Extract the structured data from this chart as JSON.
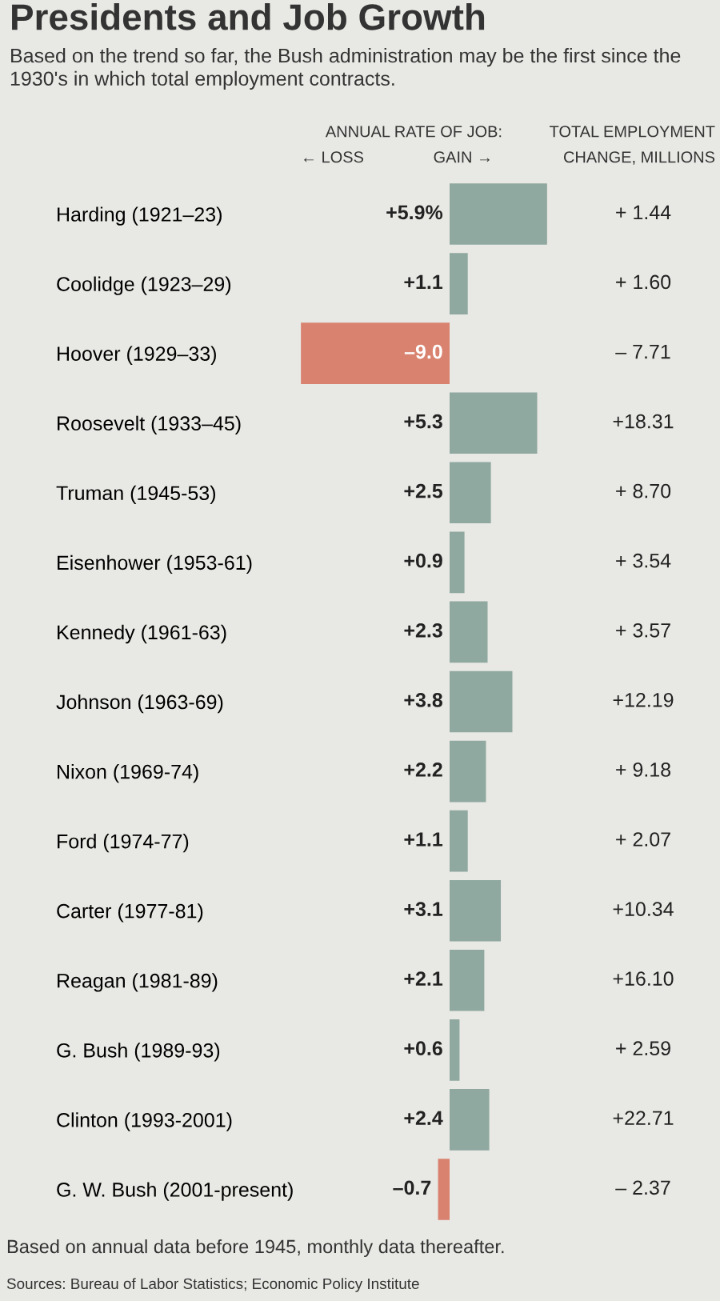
{
  "chart_data": {
    "type": "bar",
    "orientation": "horizontal",
    "title": "Presidents and Job Growth",
    "subtitle": "Based on the trend so far, the Bush administration may be the first since the 1930's in which total employment contracts.",
    "categories": [
      "Harding (1921–23)",
      "Coolidge (1923–29)",
      "Hoover (1929–33)",
      "Roosevelt (1933–45)",
      "Truman (1945-53)",
      "Eisenhower (1953-61)",
      "Kennedy (1961-63)",
      "Johnson (1963-69)",
      "Nixon (1969-74)",
      "Ford (1974-77)",
      "Carter (1977-81)",
      "Reagan (1981-89)",
      "G. Bush (1989-93)",
      "Clinton (1993-2001)",
      "G. W. Bush (2001-present)"
    ],
    "values": [
      5.9,
      1.1,
      -9.0,
      5.3,
      2.5,
      0.9,
      2.3,
      3.8,
      2.2,
      1.1,
      3.1,
      2.1,
      0.6,
      2.4,
      -0.7
    ],
    "colors": [
      "#8fa8a0",
      "#8fa8a0",
      "#d9826f",
      "#8fa8a0",
      "#8fa8a0",
      "#8fa8a0",
      "#8fa8a0",
      "#8fa8a0",
      "#8fa8a0",
      "#8fa8a0",
      "#8fa8a0",
      "#8fa8a0",
      "#8fa8a0",
      "#8fa8a0",
      "#d9826f"
    ],
    "value_labels": [
      "+5.9%",
      "+1.1",
      "–9.0",
      "+5.3",
      "+2.5",
      "+0.9",
      "+2.3",
      "+3.8",
      "+2.2",
      "+1.1",
      "+3.1",
      "+2.1",
      "+0.6",
      "+2.4",
      "–0.7"
    ],
    "tick_labels": "y",
    "annotations": [
      "ANNUAL RATE OF JOB:",
      "← LOSS",
      "GAIN →",
      "TOTAL EMPLOYMENT",
      "CHANGE, MILLIONS",
      "Based on annual data before 1945, monthly data thereafter.",
      "Sources: Bureau of Labor Statistics; Economic Policy Institute",
      "+ 1.44",
      "+ 1.60",
      "– 7.71",
      "+18.31",
      "+ 8.70",
      "+ 3.54",
      "+ 3.57",
      "+12.19",
      "+ 9.18",
      "+ 2.07",
      "+10.34",
      "+16.10",
      "+ 2.59",
      "+22.71",
      "– 2.37"
    ]
  }
}
